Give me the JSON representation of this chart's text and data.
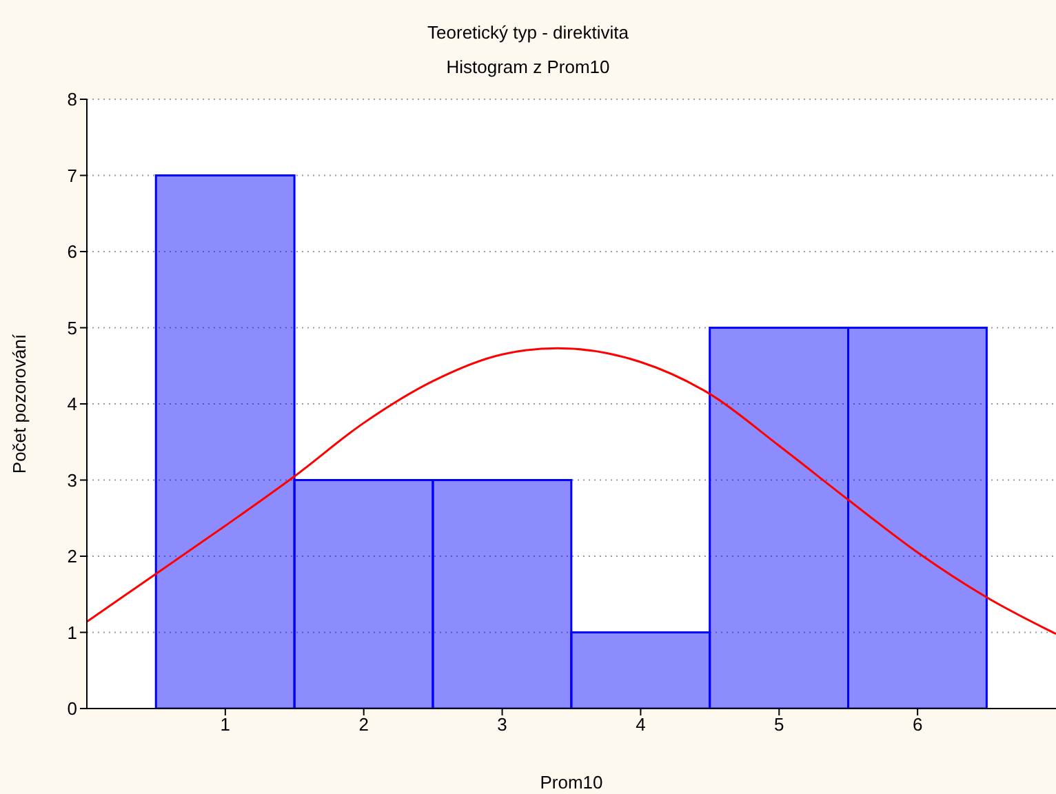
{
  "chart_data": {
    "type": "histogram",
    "title": "Teoretický typ - direktivita",
    "subtitle": "Histogram z Prom10",
    "xlabel": "Prom10",
    "ylabel": "Počet pozorování",
    "bins": [
      0.5,
      1.5,
      2.5,
      3.5,
      4.5,
      5.5,
      6.5
    ],
    "values": [
      7,
      3,
      3,
      1,
      5,
      5
    ],
    "color": "#0000ff",
    "series": [
      {
        "type": "line",
        "color": "#ff0000",
        "x": [
          0,
          0.5,
          1,
          1.5,
          2,
          2.5,
          3,
          3.4,
          4,
          4.5,
          5,
          5.5,
          6,
          6.5,
          7
        ],
        "values": [
          1.14,
          1.77,
          2.4,
          3.05,
          3.75,
          4.3,
          4.65,
          4.73,
          4.55,
          4.13,
          3.45,
          2.74,
          2.05,
          1.46,
          0.98
        ]
      }
    ],
    "xlim": [
      0,
      7
    ],
    "xticks": [
      1,
      2,
      3,
      4,
      5,
      6
    ],
    "ylim": [
      0,
      8
    ],
    "yticks": [
      0,
      1,
      2,
      3,
      4,
      5,
      6,
      7,
      8
    ],
    "grid": "y",
    "marker": "none",
    "line_style": "solid"
  }
}
